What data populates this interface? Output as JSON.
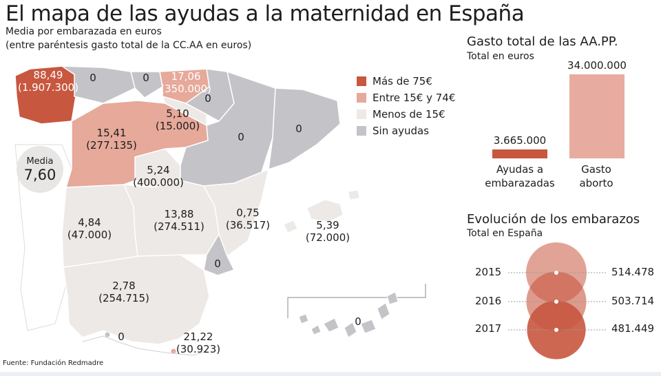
{
  "header": {
    "title": "El mapa de las ayudas a la maternidad en España",
    "subtitle_line1": "Media por embarazada en euros",
    "subtitle_line2": "(entre paréntesis gasto total de la CC.AA en euros)"
  },
  "colors": {
    "high": "#c8573f",
    "mid": "#e6a99a",
    "low": "#ece9e6",
    "none": "#c4c4c8",
    "bar": "#c8573f",
    "bar_light": "#e8ab9f",
    "circle": "#c8573f"
  },
  "legend": [
    {
      "label": "Más de 75€",
      "color": "#c8573f"
    },
    {
      "label": "Entre 15€ y 74€",
      "color": "#e6a99a"
    },
    {
      "label": "Menos de 15€",
      "color": "#ece9e6"
    },
    {
      "label": "Sin ayudas",
      "color": "#c4c4c8"
    }
  ],
  "media": {
    "label": "Media",
    "value": "7,60"
  },
  "regions": [
    {
      "name": "Galicia",
      "value": "88,49",
      "total": "(1.907.300)",
      "category": "high"
    },
    {
      "name": "Asturias",
      "value": "0",
      "total": "",
      "category": "none"
    },
    {
      "name": "Cantabria",
      "value": "0",
      "total": "",
      "category": "none"
    },
    {
      "name": "País Vasco",
      "value": "17,06",
      "total": "(350.000)",
      "category": "mid"
    },
    {
      "name": "Navarra",
      "value": "0",
      "total": "",
      "category": "none"
    },
    {
      "name": "La Rioja",
      "value": "5,10",
      "total": "(15.000)",
      "category": "low"
    },
    {
      "name": "Aragón",
      "value": "0",
      "total": "",
      "category": "none"
    },
    {
      "name": "Cataluña",
      "value": "0",
      "total": "",
      "category": "none"
    },
    {
      "name": "Castilla y León",
      "value": "15,41",
      "total": "(277.135)",
      "category": "mid"
    },
    {
      "name": "Madrid",
      "value": "5,24",
      "total": "(400.000)",
      "category": "low"
    },
    {
      "name": "Extremadura",
      "value": "4,84",
      "total": "(47.000)",
      "category": "low"
    },
    {
      "name": "Castilla-La Mancha",
      "value": "13,88",
      "total": "(274.511)",
      "category": "low"
    },
    {
      "name": "Comunidad Valenciana",
      "value": "0,75",
      "total": "(36.517)",
      "category": "low"
    },
    {
      "name": "Islas Baleares",
      "value": "5,39",
      "total": "(72.000)",
      "category": "low"
    },
    {
      "name": "Murcia",
      "value": "0",
      "total": "",
      "category": "none"
    },
    {
      "name": "Andalucía",
      "value": "2,78",
      "total": "(254.715)",
      "category": "low"
    },
    {
      "name": "Ceuta",
      "value": "0",
      "total": "",
      "category": "none"
    },
    {
      "name": "Melilla",
      "value": "21,22",
      "total": "(30.923)",
      "category": "mid"
    },
    {
      "name": "Canarias",
      "value": "0",
      "total": "",
      "category": "none"
    }
  ],
  "source": "Fuente: Fundación Redmadre",
  "gasto": {
    "title": "Gasto total de las AA.PP.",
    "subtitle": "Total en euros",
    "bars": [
      {
        "label_line1": "Ayudas a",
        "label_line2": "embarazadas",
        "value": 3665000,
        "display": "3.665.000"
      },
      {
        "label_line1": "Gasto",
        "label_line2": "aborto",
        "value": 34000000,
        "display": "34.000.000"
      }
    ]
  },
  "evolucion": {
    "title": "Evolución de los embarazos",
    "subtitle": "Total en España",
    "rows": [
      {
        "year": "2015",
        "value": 514478,
        "display": "514.478"
      },
      {
        "year": "2016",
        "value": 503714,
        "display": "503.714"
      },
      {
        "year": "2017",
        "value": 481449,
        "display": "481.449"
      }
    ]
  }
}
